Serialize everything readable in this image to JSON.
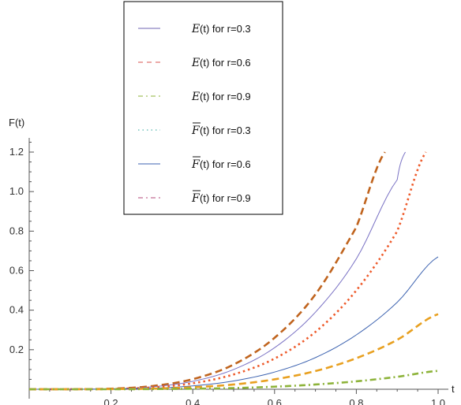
{
  "chart_data": {
    "type": "line",
    "ylabel": "F(t)",
    "xlabel": "t",
    "xlim": [
      0,
      1.02
    ],
    "ylim": [
      -0.02,
      1.27
    ],
    "xticks": [
      {
        "value": 0.2,
        "label": "0.2"
      },
      {
        "value": 0.4,
        "label": "0.4"
      },
      {
        "value": 0.6,
        "label": "0.6"
      },
      {
        "value": 0.8,
        "label": "0.8"
      },
      {
        "value": 1.0,
        "label": "1.0"
      }
    ],
    "yticks": [
      {
        "value": 0.2,
        "label": "0.2"
      },
      {
        "value": 0.4,
        "label": "0.4"
      },
      {
        "value": 0.6,
        "label": "0.6"
      },
      {
        "value": 0.8,
        "label": "0.8"
      },
      {
        "value": 1.0,
        "label": "1.0"
      },
      {
        "value": 1.2,
        "label": "1.2"
      }
    ],
    "grid": false,
    "legend_position": "top-center",
    "legend": [
      {
        "symbol": "E",
        "overbar": false,
        "text": "(t) for r=0.3",
        "color": "#6f66b3",
        "dash": "solid"
      },
      {
        "symbol": "E",
        "overbar": false,
        "text": "(t) for r=0.6",
        "color": "#d9534f",
        "dash": "dashed"
      },
      {
        "symbol": "E",
        "overbar": false,
        "text": "(t) for r=0.9",
        "color": "#8db33a",
        "dash": "dashdot"
      },
      {
        "symbol": "F",
        "overbar": true,
        "text": "(t) for r=0.3",
        "color": "#2aa39a",
        "dash": "dotted"
      },
      {
        "symbol": "F",
        "overbar": true,
        "text": "(t) for r=0.6",
        "color": "#3d63b0",
        "dash": "solid"
      },
      {
        "symbol": "F",
        "overbar": true,
        "text": "(t) for r=0.9",
        "color": "#b34a7a",
        "dash": "dashdot"
      }
    ],
    "series": [
      {
        "color": "#c0641e",
        "dash": "dashed",
        "width": 2.6,
        "x": [
          0,
          0.1,
          0.2,
          0.3,
          0.4,
          0.5,
          0.6,
          0.7,
          0.8,
          0.87
        ],
        "y": [
          0,
          0.0002,
          0.003,
          0.016,
          0.051,
          0.125,
          0.26,
          0.48,
          0.82,
          1.2
        ]
      },
      {
        "color": "#7a72c4",
        "dash": "solid",
        "width": 1.0,
        "x": [
          0,
          0.1,
          0.2,
          0.3,
          0.4,
          0.5,
          0.6,
          0.7,
          0.8,
          0.9,
          0.92
        ],
        "y": [
          0,
          0.0001,
          0.002,
          0.012,
          0.04,
          0.1,
          0.21,
          0.39,
          0.66,
          1.06,
          1.2
        ]
      },
      {
        "color": "#ee5a2a",
        "dash": "dotted",
        "width": 2.6,
        "x": [
          0,
          0.1,
          0.2,
          0.3,
          0.4,
          0.5,
          0.6,
          0.7,
          0.8,
          0.9,
          0.97
        ],
        "y": [
          0,
          0.0001,
          0.0018,
          0.009,
          0.03,
          0.075,
          0.155,
          0.29,
          0.5,
          0.8,
          1.2
        ]
      },
      {
        "color": "#3d63b0",
        "dash": "solid",
        "width": 1.0,
        "x": [
          0,
          0.1,
          0.2,
          0.3,
          0.4,
          0.5,
          0.6,
          0.7,
          0.8,
          0.9,
          1.0
        ],
        "y": [
          0,
          0.0001,
          0.001,
          0.005,
          0.017,
          0.042,
          0.087,
          0.16,
          0.275,
          0.44,
          0.67
        ]
      },
      {
        "color": "#e8a020",
        "dash": "dashed",
        "width": 2.6,
        "x": [
          0,
          0.1,
          0.2,
          0.3,
          0.4,
          0.5,
          0.6,
          0.7,
          0.8,
          0.9,
          1.0
        ],
        "y": [
          0,
          0.0,
          0.0006,
          0.003,
          0.01,
          0.024,
          0.05,
          0.092,
          0.157,
          0.25,
          0.38
        ]
      },
      {
        "color": "#8db33a",
        "dash": "dashdot",
        "width": 2.6,
        "x": [
          0,
          0.1,
          0.2,
          0.3,
          0.4,
          0.5,
          0.6,
          0.7,
          0.8,
          0.9,
          1.0
        ],
        "y": [
          0,
          0.0,
          0.0001,
          0.0008,
          0.0025,
          0.006,
          0.013,
          0.024,
          0.04,
          0.063,
          0.093
        ]
      }
    ]
  }
}
